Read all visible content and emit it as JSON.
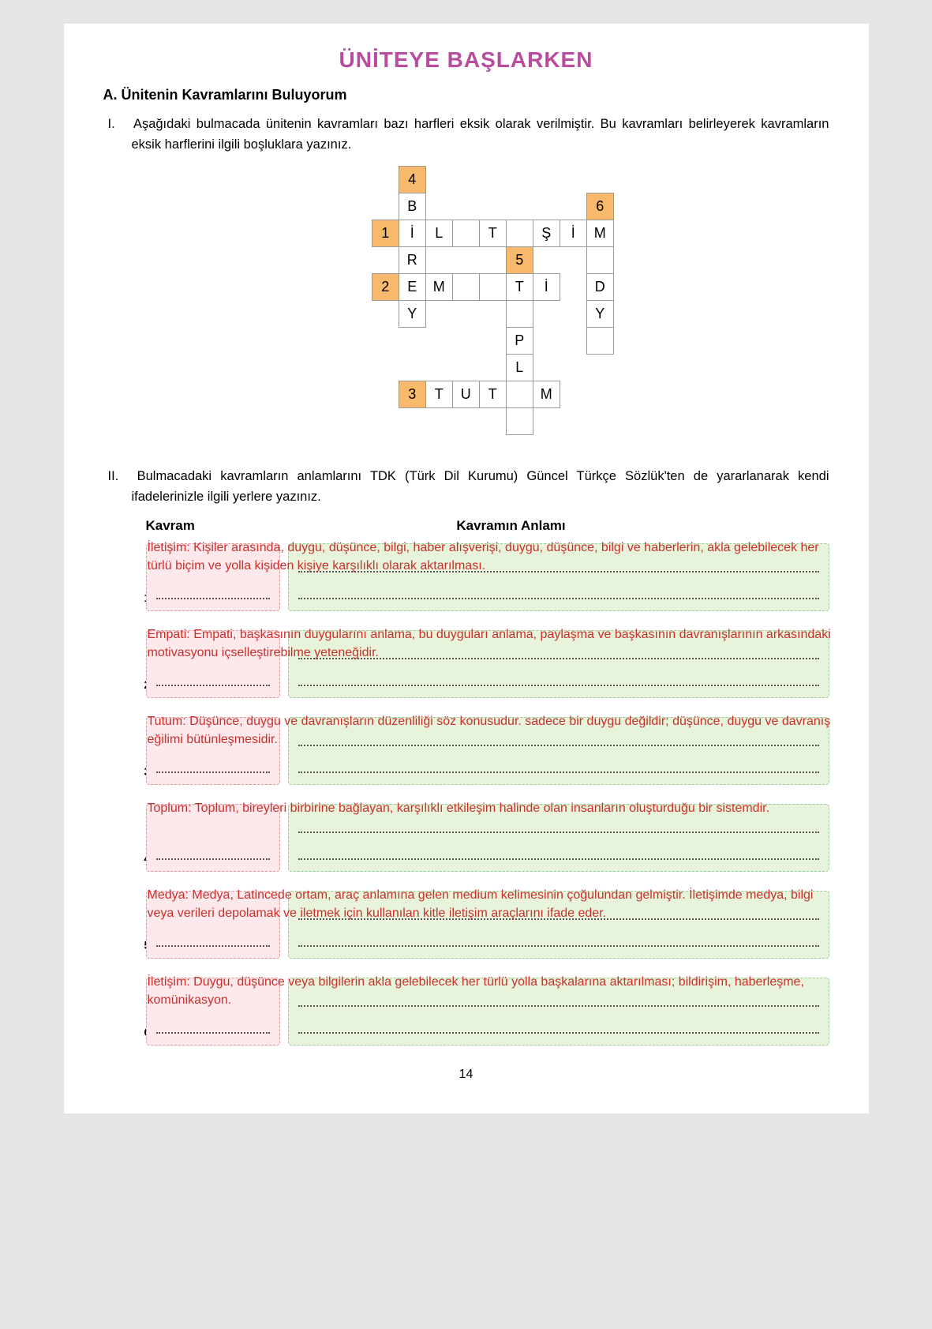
{
  "title": "ÜNİTEYE BAŞLARKEN",
  "sectionA": "A. Ünitenin Kavramlarını Buluyorum",
  "instr1_roman": "I.",
  "instr1": "Aşağıdaki bulmacada ünitenin kavramları bazı harfleri eksik olarak verilmiştir. Bu kavramları belirleyerek kavramların eksik harflerini ilgili boşluklara yazınız.",
  "instr2_roman": "II.",
  "instr2": "Bulmacadaki kavramların anlamlarını TDK (Türk Dil Kurumu) Güncel Türkçe Sözlük'ten de yararlanarak kendi ifadelerinizle ilgili yerlere yazınız.",
  "col_kavram": "Kavram",
  "col_anlam": "Kavramın Anlamı",
  "pageNumber": "14",
  "crossword": {
    "num_color": "#f7b96b",
    "cells": {
      "n1": "1",
      "n2": "2",
      "n3": "3",
      "n4": "4",
      "n5": "5",
      "n6": "6",
      "r1c4": "B",
      "r2c4": "İ",
      "r2c5": "L",
      "r2c7": "T",
      "r2c9": "Ş",
      "r2c10": "İ",
      "r2c11": "M",
      "r3c4": "R",
      "r4c4": "E",
      "r4c5": "M",
      "r4c8": "T",
      "r4c9": "İ",
      "r4c11": "D",
      "r5c4": "Y",
      "r5c11": "Y",
      "r6c8": "P",
      "r7c8": "L",
      "r8c5": "T",
      "r8c6": "U",
      "r8c7": "T",
      "r8c9": "M"
    }
  },
  "defs": [
    {
      "n": "1.",
      "text": "İletişim: Kişiler arasında, duygu, düşünce, bilgi, haber alışverişi, duygu, düşünce, bilgi ve haberlerin, akla gelebilecek her türlü biçim ve yolla kişiden kişiye karşılıklı olarak aktarılması."
    },
    {
      "n": "2.",
      "text": "Empati: Empati, başkasının duygularını anlama, bu duyguları anlama, paylaşma ve başkasının davranışlarının arkasındaki motivasyonu içselleştirebilme yeteneğidir."
    },
    {
      "n": "3.",
      "text": "Tutum: Düşünce, duygu ve davranışların düzenliliği söz konusudur. sadece bir duygu değildir; düşünce, duygu ve davranış eğilimi bütünleşmesidir."
    },
    {
      "n": "4.",
      "text": "Toplum: Toplum, bireyleri birbirine bağlayan, karşılıklı etkileşim halinde olan insanların oluşturduğu bir sistemdir."
    },
    {
      "n": "5.",
      "text": "Medya: Medya, Latincede ortam, araç anlamına gelen medium kelimesinin çoğulundan gelmiştir. İletişimde medya, bilgi veya verileri depolamak ve iletmek için kullanılan kitle iletişim araçlarını ifade eder."
    },
    {
      "n": "6.",
      "text": "İletişim: Duygu, düşünce veya bilgilerin akla gelebilecek her türlü yolla başkalarına aktarılması; bildirişim, haberleşme, komünikasyon."
    }
  ]
}
